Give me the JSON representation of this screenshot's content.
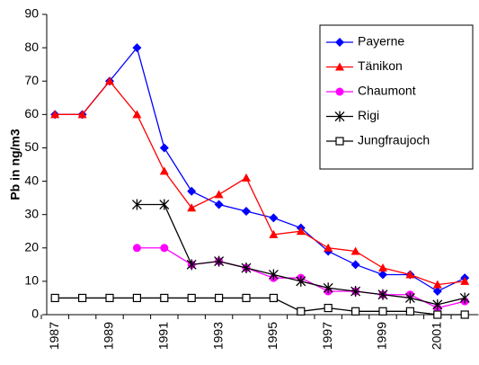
{
  "chart_data": {
    "type": "line",
    "y_label": "Pb in ng/m3",
    "categories": [
      "1987",
      null,
      "1989",
      null,
      "1991",
      null,
      "1993",
      null,
      "1995",
      null,
      "1997",
      null,
      "1999",
      null,
      "2001",
      null
    ],
    "series": [
      {
        "name": "Payerne",
        "color": "#0000ff",
        "marker": "diamond",
        "values": [
          60,
          60,
          70,
          80,
          50,
          37,
          33,
          31,
          29,
          26,
          19,
          15,
          12,
          12,
          7,
          11
        ]
      },
      {
        "name": "Tänikon",
        "color": "#ff0000",
        "marker": "triangle",
        "values": [
          60,
          60,
          70,
          60,
          43,
          32,
          36,
          41,
          24,
          25,
          20,
          19,
          14,
          12,
          9,
          10
        ]
      },
      {
        "name": "Chaumont",
        "color": "#ff00ff",
        "marker": "circle",
        "values": [
          null,
          null,
          null,
          20,
          20,
          15,
          16,
          14,
          11,
          11,
          7,
          7,
          6,
          6,
          2,
          4
        ]
      },
      {
        "name": "Rigi",
        "color": "#000000",
        "marker": "star",
        "values": [
          null,
          null,
          null,
          33,
          33,
          15,
          16,
          14,
          12,
          10,
          8,
          7,
          6,
          5,
          3,
          5
        ]
      },
      {
        "name": "Jungfraujoch",
        "color": "#000000",
        "marker": "square",
        "values": [
          5,
          5,
          5,
          5,
          5,
          5,
          5,
          5,
          5,
          1,
          2,
          1,
          1,
          1,
          0,
          0
        ]
      }
    ],
    "ylim": [
      0,
      90
    ],
    "yticks": [
      0,
      10,
      20,
      30,
      40,
      50,
      60,
      70,
      80,
      90
    ],
    "grid": false,
    "legend": "top-right"
  }
}
